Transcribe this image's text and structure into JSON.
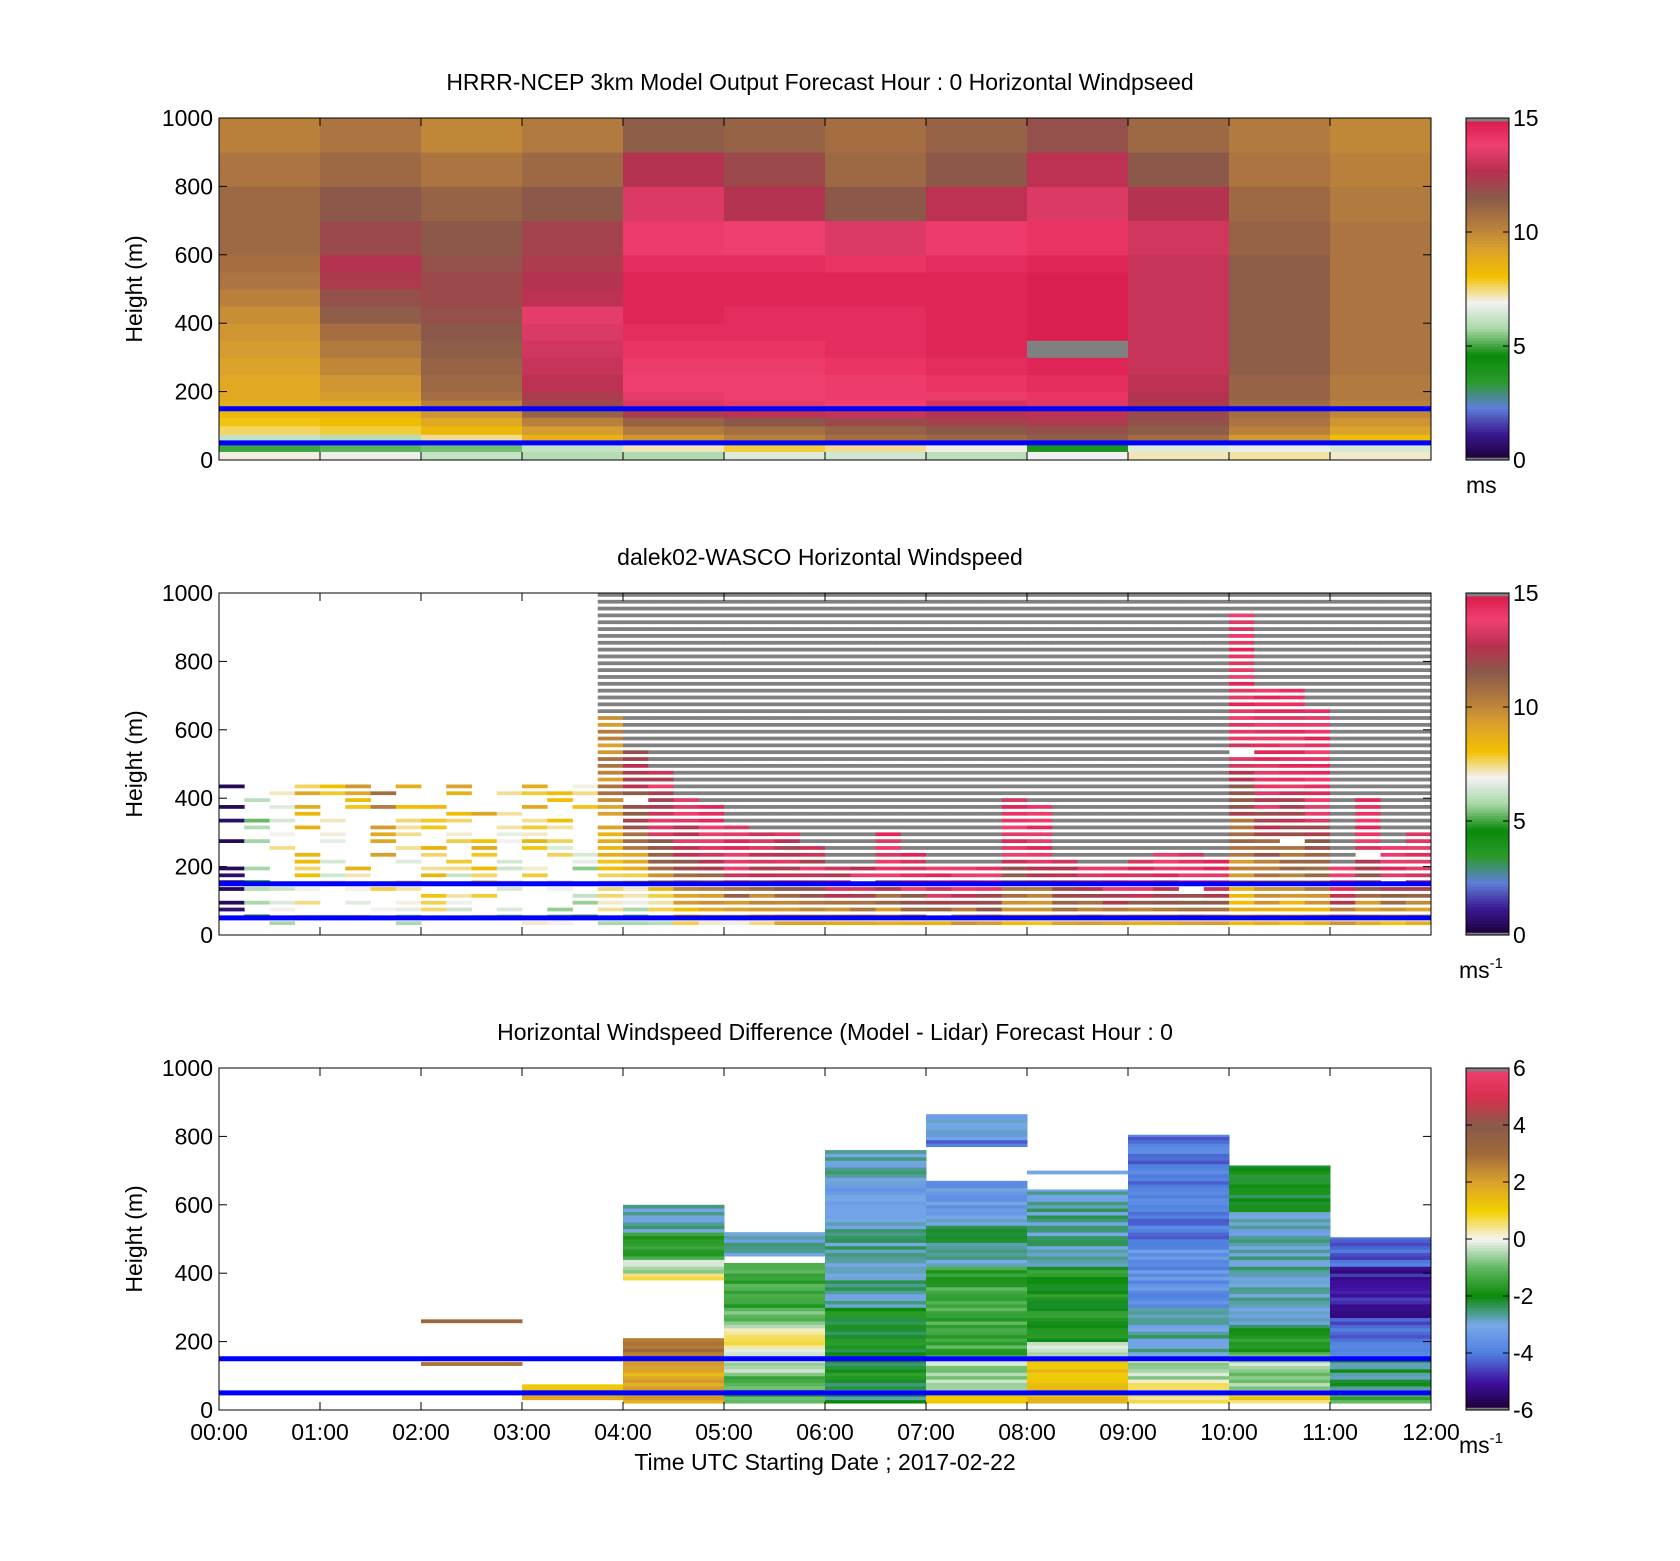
{
  "chart_data": [
    {
      "type": "heatmap",
      "title": "HRRR-NCEP 3km Model Output   Forecast Hour : 0 Horizontal Windpseed",
      "ylabel": "Height (m)",
      "xlabel": "",
      "ylim": [
        0,
        1000
      ],
      "yticks": [
        "0",
        "200",
        "400",
        "600",
        "800",
        "1000"
      ],
      "xlim_hours": [
        0,
        12
      ],
      "x_step_hours": 1,
      "height_levels_m": [
        0,
        25,
        50,
        75,
        100,
        125,
        150,
        175,
        200,
        250,
        300,
        350,
        400,
        450,
        500,
        550,
        600,
        700,
        800,
        900,
        1000
      ],
      "colorbar": {
        "min": 0,
        "max": 15,
        "ticks": [
          "0",
          "5",
          "10",
          "15"
        ],
        "unit": "ms",
        "unit_sup": ""
      },
      "missing_value_color": "#808080",
      "values": [
        [
          7.0,
          6.8,
          6.2,
          6.0,
          5.9,
          6.6,
          6.4,
          6.1,
          6.9,
          7.2,
          7.3,
          7.1
        ],
        [
          5.0,
          5.2,
          5.4,
          6.2,
          7.2,
          7.8,
          7.4,
          7.0,
          4.0,
          6.6,
          6.8,
          6.5
        ],
        [
          6.2,
          6.0,
          7.4,
          8.6,
          9.6,
          10.2,
          10.8,
          11.0,
          11.4,
          10.8,
          9.5,
          8.2
        ],
        [
          7.6,
          7.8,
          8.4,
          9.4,
          10.4,
          10.8,
          11.2,
          11.6,
          11.8,
          11.4,
          10.2,
          9.2
        ],
        [
          8.0,
          8.2,
          9.0,
          10.2,
          11.2,
          11.6,
          12.0,
          12.2,
          12.4,
          11.8,
          10.6,
          9.6
        ],
        [
          8.4,
          8.6,
          9.6,
          11.2,
          12.4,
          12.8,
          13.0,
          12.6,
          12.8,
          12.0,
          10.8,
          10.0
        ],
        [
          8.8,
          9.0,
          10.2,
          12.0,
          13.4,
          13.6,
          13.8,
          13.2,
          13.4,
          12.4,
          11.0,
          10.2
        ],
        [
          9.0,
          9.4,
          10.8,
          12.4,
          13.6,
          13.8,
          14.0,
          14.0,
          14.2,
          12.6,
          11.2,
          10.4
        ],
        [
          9.0,
          9.6,
          11.0,
          12.8,
          13.8,
          13.8,
          14.0,
          14.2,
          14.4,
          12.8,
          11.2,
          10.4
        ],
        [
          9.2,
          10.0,
          11.2,
          13.0,
          14.0,
          14.0,
          14.2,
          14.4,
          14.6,
          13.0,
          11.4,
          10.6
        ],
        [
          9.4,
          10.4,
          11.4,
          13.2,
          14.2,
          14.2,
          14.4,
          14.6,
          -1,
          13.0,
          11.4,
          10.6
        ],
        [
          9.6,
          10.8,
          11.6,
          13.4,
          14.4,
          14.4,
          14.4,
          14.6,
          14.8,
          13.0,
          11.4,
          10.6
        ],
        [
          9.8,
          11.4,
          11.8,
          13.6,
          14.6,
          14.4,
          14.4,
          14.6,
          14.8,
          13.0,
          11.4,
          10.6
        ],
        [
          10.2,
          11.8,
          12.0,
          12.8,
          14.6,
          14.6,
          14.6,
          14.6,
          14.8,
          13.0,
          11.4,
          10.6
        ],
        [
          10.6,
          12.4,
          12.0,
          12.6,
          14.6,
          14.6,
          14.6,
          14.6,
          14.8,
          13.0,
          11.4,
          10.6
        ],
        [
          10.8,
          12.6,
          11.8,
          12.4,
          14.4,
          14.4,
          14.2,
          14.4,
          14.6,
          13.0,
          11.4,
          10.6
        ],
        [
          11.0,
          12.0,
          11.6,
          12.2,
          14.0,
          13.8,
          13.4,
          14.0,
          14.2,
          13.2,
          11.2,
          10.6
        ],
        [
          11.0,
          11.6,
          11.2,
          11.6,
          13.4,
          12.6,
          11.6,
          12.8,
          13.4,
          12.6,
          11.0,
          10.4
        ],
        [
          10.6,
          11.0,
          10.6,
          11.0,
          12.6,
          12.0,
          11.0,
          11.6,
          12.8,
          11.6,
          10.6,
          10.2
        ],
        [
          10.2,
          10.6,
          10.0,
          10.4,
          11.4,
          11.2,
          10.8,
          11.2,
          11.8,
          11.0,
          10.4,
          10.0
        ]
      ]
    },
    {
      "type": "heatmap",
      "title": "dalek02-WASCO  Horizontal Windspeed",
      "ylabel": "Height (m)",
      "xlabel": "",
      "ylim": [
        0,
        1000
      ],
      "yticks": [
        "0",
        "200",
        "400",
        "600",
        "800",
        "1000"
      ],
      "xlim_hours": [
        0,
        12
      ],
      "x_step_hours": 0.25,
      "height_step_m": 20,
      "colorbar": {
        "min": 0,
        "max": 15,
        "ticks": [
          "0",
          "5",
          "10",
          "15"
        ],
        "unit": "ms",
        "unit_sup": "-1"
      },
      "missing_value_color": "#808080",
      "profiles": [
        {
          "low": 0,
          "high": 0,
          "unavail": 1000
        },
        {
          "low": 5,
          "high": 6,
          "unavail": 1000
        },
        {
          "low": 6,
          "high": 8,
          "unavail": 1000
        },
        {
          "low": 7,
          "high": 9,
          "unavail": 1000
        },
        {
          "low": 6,
          "high": 9,
          "unavail": 1000
        },
        {
          "low": 7,
          "high": 10,
          "unavail": 1000
        },
        {
          "low": 7,
          "high": 12,
          "unavail": 1000
        },
        {
          "low": 6,
          "high": 10,
          "unavail": 1000
        },
        {
          "low": 7,
          "high": 10,
          "unavail": 1000
        },
        {
          "low": 6,
          "high": 10,
          "unavail": 1000
        },
        {
          "low": 7,
          "high": 11,
          "unavail": 1000
        },
        {
          "low": 6,
          "high": 9,
          "unavail": 1000
        },
        {
          "low": 7,
          "high": 9,
          "unavail": 1000
        },
        {
          "low": 6,
          "high": 9,
          "unavail": 1000
        },
        {
          "low": 5,
          "high": 9,
          "unavail": 1000
        },
        {
          "low": 6,
          "high": 10,
          "unavail": 640
        },
        {
          "low": 5,
          "high": 12,
          "unavail": 540
        },
        {
          "low": 6,
          "high": 13,
          "unavail": 470
        },
        {
          "low": 7,
          "high": 13,
          "unavail": 400
        },
        {
          "low": 7,
          "high": 14,
          "unavail": 380
        },
        {
          "low": 7,
          "high": 14,
          "unavail": 320
        },
        {
          "low": 7,
          "high": 13,
          "unavail": 300
        },
        {
          "low": 8,
          "high": 13,
          "unavail": 290
        },
        {
          "low": 8,
          "high": 13,
          "unavail": 250
        },
        {
          "low": 8,
          "high": 13,
          "unavail": 190
        },
        {
          "low": 8,
          "high": 13,
          "unavail": 200
        },
        {
          "low": 8,
          "high": 14,
          "unavail": 290
        },
        {
          "low": 8,
          "high": 14,
          "unavail": 230
        },
        {
          "low": 8,
          "high": 14,
          "unavail": 200
        },
        {
          "low": 8,
          "high": 14,
          "unavail": 190
        },
        {
          "low": 8,
          "high": 14,
          "unavail": 200
        },
        {
          "low": 8,
          "high": 14,
          "unavail": 390
        },
        {
          "low": 8,
          "high": 14,
          "unavail": 370
        },
        {
          "low": 8,
          "high": 13,
          "unavail": 220
        },
        {
          "low": 8,
          "high": 13,
          "unavail": 190
        },
        {
          "low": 8,
          "high": 14,
          "unavail": 190
        },
        {
          "low": 8,
          "high": 14,
          "unavail": 220
        },
        {
          "low": 8,
          "high": 14,
          "unavail": 240
        },
        {
          "low": 8,
          "high": 14,
          "unavail": 230
        },
        {
          "low": 8,
          "high": 14,
          "unavail": 220
        },
        {
          "low": 8,
          "high": 14,
          "unavail": 940
        },
        {
          "low": 8,
          "high": 14,
          "unavail": 720
        },
        {
          "low": 8,
          "high": 14,
          "unavail": 720
        },
        {
          "low": 8,
          "high": 14,
          "unavail": 660
        },
        {
          "low": 8,
          "high": 14,
          "unavail": 190
        },
        {
          "low": 8,
          "high": 14,
          "unavail": 390
        },
        {
          "low": 8,
          "high": 14,
          "unavail": 260
        },
        {
          "low": 8,
          "high": 14,
          "unavail": 300
        }
      ]
    },
    {
      "type": "heatmap",
      "title": "Horizontal Windspeed Difference (Model - Lidar) Forecast Hour : 0",
      "ylabel": "Height (m)",
      "xlabel": "Time UTC  Starting Date ; 2017-02-22",
      "ylim": [
        0,
        1000
      ],
      "yticks": [
        "0",
        "200",
        "400",
        "600",
        "800",
        "1000"
      ],
      "xticks": [
        "00:00",
        "01:00",
        "02:00",
        "03:00",
        "04:00",
        "05:00",
        "06:00",
        "07:00",
        "08:00",
        "09:00",
        "10:00",
        "11:00",
        "12:00"
      ],
      "colorbar": {
        "min": -6,
        "max": 6,
        "ticks": [
          "-6",
          "-4",
          "-2",
          "0",
          "2",
          "4",
          "6"
        ],
        "unit": "ms",
        "unit_sup": "-1"
      },
      "missing_value_color": "#808080",
      "bands": [
        {
          "hour": 2,
          "from": 130,
          "to": 140,
          "value": 3.2
        },
        {
          "hour": 2,
          "from": 255,
          "to": 265,
          "value": 3.2
        },
        {
          "hour": 3,
          "from": 30,
          "to": 60,
          "value": 1.5
        },
        {
          "hour": 3,
          "from": 60,
          "to": 75,
          "value": 1.0
        },
        {
          "hour": 4,
          "from": 20,
          "to": 120,
          "value": 1.8
        },
        {
          "hour": 4,
          "from": 120,
          "to": 150,
          "value": 2.4
        },
        {
          "hour": 4,
          "from": 150,
          "to": 210,
          "value": 3.0
        },
        {
          "hour": 4,
          "from": 380,
          "to": 400,
          "value": 0.6
        },
        {
          "hour": 4,
          "from": 400,
          "to": 440,
          "value": -0.5
        },
        {
          "hour": 4,
          "from": 440,
          "to": 520,
          "value": -1.5
        },
        {
          "hour": 4,
          "from": 520,
          "to": 600,
          "value": -2.8
        },
        {
          "hour": 5,
          "from": 20,
          "to": 100,
          "value": -1.2
        },
        {
          "hour": 5,
          "from": 100,
          "to": 180,
          "value": -0.4
        },
        {
          "hour": 5,
          "from": 180,
          "to": 240,
          "value": 0.4
        },
        {
          "hour": 5,
          "from": 240,
          "to": 300,
          "value": -0.8
        },
        {
          "hour": 5,
          "from": 300,
          "to": 430,
          "value": -1.4
        },
        {
          "hour": 5,
          "from": 450,
          "to": 520,
          "value": -2.9
        },
        {
          "hour": 6,
          "from": 20,
          "to": 80,
          "value": -2.4
        },
        {
          "hour": 6,
          "from": 80,
          "to": 300,
          "value": -2.0
        },
        {
          "hour": 6,
          "from": 300,
          "to": 560,
          "value": -2.7
        },
        {
          "hour": 6,
          "from": 560,
          "to": 660,
          "value": -3.2
        },
        {
          "hour": 6,
          "from": 660,
          "to": 760,
          "value": -2.9
        },
        {
          "hour": 7,
          "from": 20,
          "to": 60,
          "value": 0.8
        },
        {
          "hour": 7,
          "from": 60,
          "to": 160,
          "value": -0.6
        },
        {
          "hour": 7,
          "from": 160,
          "to": 420,
          "value": -1.4
        },
        {
          "hour": 7,
          "from": 420,
          "to": 560,
          "value": -2.6
        },
        {
          "hour": 7,
          "from": 560,
          "to": 670,
          "value": -3.3
        },
        {
          "hour": 7,
          "from": 770,
          "to": 790,
          "value": -3.9
        },
        {
          "hour": 7,
          "from": 790,
          "to": 865,
          "value": -3.0
        },
        {
          "hour": 8,
          "from": 20,
          "to": 150,
          "value": 1.4
        },
        {
          "hour": 8,
          "from": 150,
          "to": 200,
          "value": -0.3
        },
        {
          "hour": 8,
          "from": 200,
          "to": 420,
          "value": -1.8
        },
        {
          "hour": 8,
          "from": 420,
          "to": 645,
          "value": -2.7
        },
        {
          "hour": 8,
          "from": 690,
          "to": 700,
          "value": -2.9
        },
        {
          "hour": 9,
          "from": 20,
          "to": 90,
          "value": 0.6
        },
        {
          "hour": 9,
          "from": 90,
          "to": 160,
          "value": -0.4
        },
        {
          "hour": 9,
          "from": 160,
          "to": 300,
          "value": -2.8
        },
        {
          "hour": 9,
          "from": 300,
          "to": 500,
          "value": -3.6
        },
        {
          "hour": 9,
          "from": 500,
          "to": 805,
          "value": -4.0
        },
        {
          "hour": 10,
          "from": 20,
          "to": 60,
          "value": 0.9
        },
        {
          "hour": 10,
          "from": 60,
          "to": 160,
          "value": -0.6
        },
        {
          "hour": 10,
          "from": 160,
          "to": 240,
          "value": -1.5
        },
        {
          "hour": 10,
          "from": 240,
          "to": 580,
          "value": -2.8
        },
        {
          "hour": 10,
          "from": 580,
          "to": 715,
          "value": -2.0
        },
        {
          "hour": 11,
          "from": 20,
          "to": 60,
          "value": -1.2
        },
        {
          "hour": 11,
          "from": 60,
          "to": 150,
          "value": -2.4
        },
        {
          "hour": 11,
          "from": 150,
          "to": 200,
          "value": -3.6
        },
        {
          "hour": 11,
          "from": 200,
          "to": 270,
          "value": -4.3
        },
        {
          "hour": 11,
          "from": 270,
          "to": 420,
          "value": -5.0
        },
        {
          "hour": 11,
          "from": 420,
          "to": 505,
          "value": -4.3
        }
      ]
    }
  ],
  "reference_lines": {
    "heights_m": [
      50,
      150
    ],
    "color": "#0000ff"
  },
  "colormaps": {
    "speed": [
      "#1a0033",
      "#3a1890",
      "#5f7fd8",
      "#2a9a2a",
      "#0a8a0a",
      "#a8d8a8",
      "#f2f2f2",
      "#f2c000",
      "#dba22c",
      "#b27a3e",
      "#8a5a4a",
      "#b83050",
      "#f04070",
      "#d8184a"
    ],
    "diff": [
      "#1a0033",
      "#4010a0",
      "#5080e0",
      "#78a8e8",
      "#0a8a0a",
      "#60b860",
      "#f4f4f4",
      "#f2d000",
      "#dba22c",
      "#a06a3a",
      "#8a5a4a",
      "#d8304e",
      "#f04070"
    ]
  }
}
